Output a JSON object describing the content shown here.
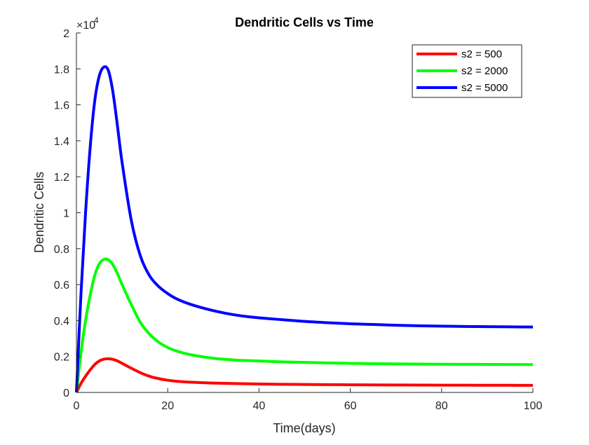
{
  "chart_data": {
    "type": "line",
    "title": "Dendritic Cells vs Time",
    "xlabel": "Time(days)",
    "ylabel": "Dendritic Cells",
    "xlim": [
      0,
      100
    ],
    "ylim": [
      0,
      20000
    ],
    "x_ticks": [
      0,
      20,
      40,
      60,
      80,
      100
    ],
    "y_ticks": [
      0,
      2000,
      4000,
      6000,
      8000,
      10000,
      12000,
      14000,
      16000,
      18000,
      20000
    ],
    "x_tick_labels": [
      "0",
      "20",
      "40",
      "60",
      "80",
      "100"
    ],
    "y_tick_labels": [
      "0",
      "0.2",
      "0.4",
      "0.6",
      "0.8",
      "1",
      "1.2",
      "1.4",
      "1.6",
      "1.8",
      "2"
    ],
    "y_multiplier_base": "×10",
    "y_multiplier_exp": "4",
    "grid": false,
    "legend_position": "top-right",
    "x": [
      0,
      1,
      2,
      3,
      4,
      5,
      6,
      7,
      8,
      9,
      10,
      12,
      14,
      16,
      18,
      20,
      22,
      25,
      30,
      35,
      40,
      45,
      50,
      55,
      60,
      65,
      70,
      75,
      80,
      85,
      90,
      95,
      100
    ],
    "series": [
      {
        "name": "s2 = 500",
        "color": "#ff0000",
        "values": [
          0,
          500,
          900,
          1250,
          1550,
          1750,
          1850,
          1870,
          1840,
          1750,
          1620,
          1350,
          1100,
          900,
          770,
          680,
          620,
          570,
          520,
          490,
          470,
          455,
          445,
          435,
          425,
          420,
          415,
          410,
          405,
          403,
          400,
          398,
          395
        ]
      },
      {
        "name": "s2 = 2000",
        "color": "#00ff00",
        "values": [
          0,
          2200,
          4000,
          5400,
          6500,
          7150,
          7400,
          7380,
          7100,
          6600,
          6000,
          4900,
          3900,
          3250,
          2800,
          2500,
          2300,
          2100,
          1900,
          1800,
          1750,
          1700,
          1670,
          1640,
          1620,
          1600,
          1590,
          1580,
          1570,
          1565,
          1560,
          1555,
          1550
        ]
      },
      {
        "name": "s2 = 5000",
        "color": "#0000ff",
        "values": [
          0,
          5500,
          10000,
          13600,
          16200,
          17600,
          18100,
          17900,
          16700,
          14800,
          12800,
          9600,
          7600,
          6500,
          5900,
          5500,
          5200,
          4900,
          4550,
          4300,
          4150,
          4050,
          3950,
          3880,
          3820,
          3780,
          3740,
          3710,
          3690,
          3670,
          3660,
          3650,
          3640
        ]
      }
    ]
  }
}
